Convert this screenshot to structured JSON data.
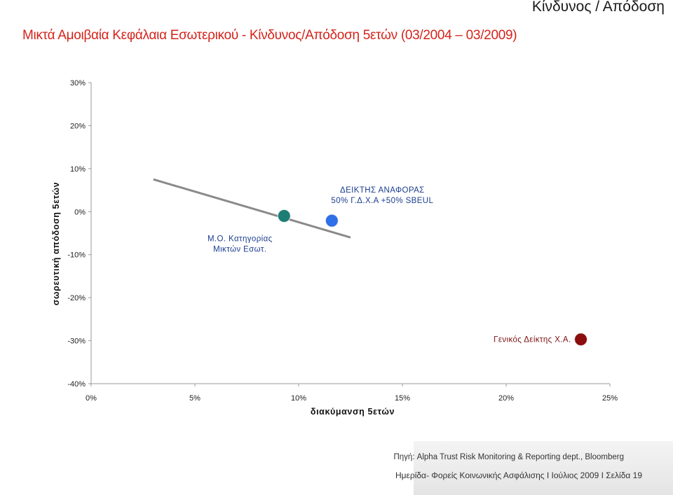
{
  "header": {
    "corner_title": "Κίνδυνος / Απόδοση",
    "title": "Μικτά Αμοιβαία Κεφάλαια Εσωτερικού - Κίνδυνος/Απόδοση 5ετών (03/2004 – 03/2009)"
  },
  "chart_data": {
    "type": "scatter",
    "xlabel": "διακύμανση 5ετών",
    "ylabel": "σωρευτική απόδοση 5ετών",
    "xlim": [
      0,
      25
    ],
    "ylim": [
      -40,
      30
    ],
    "x_ticks": [
      "0%",
      "5%",
      "10%",
      "15%",
      "20%",
      "25%"
    ],
    "y_ticks": [
      "30%",
      "20%",
      "10%",
      "0%",
      "-10%",
      "-20%",
      "-30%",
      "-40%"
    ],
    "grid": false,
    "trendline": {
      "x": [
        3.0,
        12.5
      ],
      "y": [
        7.5,
        -6.0
      ],
      "color": "#8a8a8a"
    },
    "points": [
      {
        "label_lines": [
          "Μ.Ο. Κατηγορίας",
          "Μικτών Εσωτ."
        ],
        "x": 9.3,
        "y": -1.0,
        "color": "#1b7d74"
      },
      {
        "label_lines": [
          "ΔΕΙΚΤΗΣ ΑΝΑΦΟΡΑΣ",
          "50% Γ.Δ.Χ.Α +50% SBEUL"
        ],
        "x": 11.6,
        "y": -2.1,
        "color": "#2f6fe8"
      },
      {
        "label_lines": [
          "Γενικός Δείκτης Χ.Α."
        ],
        "x": 23.6,
        "y": -29.7,
        "color": "#8b0d0d"
      }
    ]
  },
  "footer": {
    "source": "Πηγή: Alpha Trust Risk Monitoring & Reporting dept., Bloomberg",
    "event": "Ημερίδα- Φορείς Κοινωνικής Ασφάλισης  I  Ιούλιος 2009  I  Σελίδα  19"
  }
}
